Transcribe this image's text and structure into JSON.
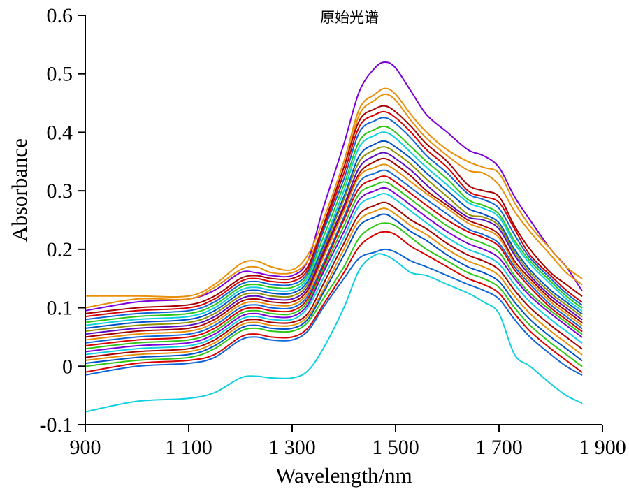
{
  "chart_data": {
    "type": "line",
    "title": "原始光谱",
    "xlabel": "Wavelength/nm",
    "ylabel": "Absorbance",
    "xlim": [
      900,
      1900
    ],
    "ylim": [
      -0.1,
      0.6
    ],
    "x_ticks": [
      900,
      1100,
      1300,
      1500,
      1700,
      1900
    ],
    "x_tick_labels": [
      "900",
      "1 100",
      "1 300",
      "1 500",
      "1 700",
      "1 900"
    ],
    "y_ticks": [
      -0.1,
      0,
      0.1,
      0.2,
      0.3,
      0.4,
      0.5,
      0.6
    ],
    "y_tick_labels": [
      "-0.1",
      "0",
      "0.1",
      "0.2",
      "0.3",
      "0.4",
      "0.5",
      "0.6"
    ],
    "grid": false,
    "legend": "none",
    "x": [
      900,
      1000,
      1100,
      1150,
      1200,
      1230,
      1260,
      1300,
      1330,
      1360,
      1400,
      1430,
      1460,
      1480,
      1500,
      1530,
      1560,
      1600,
      1640,
      1670,
      1700,
      1730,
      1760,
      1800,
      1830,
      1860
    ],
    "palette": [
      "#7a00d8",
      "#e8900a",
      "#a80000",
      "#1066d8",
      "#2ec818",
      "#10d0e0",
      "#d80000",
      "#0050c8",
      "#909000",
      "#5a10c0"
    ],
    "series": [
      {
        "color": "#7a00d8",
        "values": [
          0.095,
          0.11,
          0.115,
          0.13,
          0.16,
          0.16,
          0.155,
          0.155,
          0.18,
          0.27,
          0.38,
          0.47,
          0.51,
          0.52,
          0.51,
          0.47,
          0.43,
          0.4,
          0.37,
          0.36,
          0.34,
          0.29,
          0.25,
          0.2,
          0.17,
          0.13
        ]
      },
      {
        "color": "#e8900a",
        "values": [
          0.12,
          0.12,
          0.12,
          0.14,
          0.175,
          0.18,
          0.17,
          0.165,
          0.19,
          0.25,
          0.35,
          0.44,
          0.465,
          0.475,
          0.465,
          0.43,
          0.4,
          0.37,
          0.35,
          0.34,
          0.33,
          0.28,
          0.24,
          0.2,
          0.17,
          0.15
        ]
      },
      {
        "color": "#e8900a",
        "values": [
          0.1,
          0.115,
          0.115,
          0.135,
          0.165,
          0.17,
          0.16,
          0.16,
          0.18,
          0.24,
          0.34,
          0.43,
          0.455,
          0.465,
          0.455,
          0.42,
          0.39,
          0.36,
          0.335,
          0.33,
          0.31,
          0.265,
          0.23,
          0.19,
          0.16,
          0.14
        ]
      },
      {
        "color": "#a80000",
        "values": [
          0.09,
          0.1,
          0.105,
          0.12,
          0.15,
          0.155,
          0.15,
          0.15,
          0.17,
          0.24,
          0.34,
          0.42,
          0.44,
          0.445,
          0.435,
          0.41,
          0.38,
          0.35,
          0.31,
          0.3,
          0.29,
          0.24,
          0.2,
          0.16,
          0.14,
          0.12
        ]
      },
      {
        "color": "#d80000",
        "values": [
          0.085,
          0.095,
          0.1,
          0.115,
          0.145,
          0.15,
          0.145,
          0.145,
          0.165,
          0.235,
          0.33,
          0.41,
          0.43,
          0.435,
          0.425,
          0.4,
          0.37,
          0.34,
          0.3,
          0.29,
          0.28,
          0.235,
          0.19,
          0.155,
          0.13,
          0.11
        ]
      },
      {
        "color": "#1066d8",
        "values": [
          0.08,
          0.09,
          0.095,
          0.11,
          0.14,
          0.145,
          0.14,
          0.14,
          0.16,
          0.23,
          0.32,
          0.4,
          0.42,
          0.425,
          0.415,
          0.39,
          0.36,
          0.33,
          0.295,
          0.285,
          0.27,
          0.225,
          0.185,
          0.15,
          0.125,
          0.105
        ]
      },
      {
        "color": "#2ec818",
        "values": [
          0.075,
          0.085,
          0.09,
          0.105,
          0.135,
          0.14,
          0.135,
          0.135,
          0.155,
          0.22,
          0.31,
          0.385,
          0.405,
          0.41,
          0.4,
          0.375,
          0.35,
          0.32,
          0.285,
          0.275,
          0.26,
          0.215,
          0.18,
          0.145,
          0.12,
          0.1
        ]
      },
      {
        "color": "#10d0e0",
        "values": [
          0.07,
          0.08,
          0.085,
          0.1,
          0.13,
          0.135,
          0.13,
          0.13,
          0.15,
          0.21,
          0.3,
          0.375,
          0.395,
          0.4,
          0.39,
          0.365,
          0.34,
          0.31,
          0.28,
          0.27,
          0.255,
          0.21,
          0.175,
          0.14,
          0.115,
          0.095
        ]
      },
      {
        "color": "#0050c8",
        "values": [
          0.065,
          0.075,
          0.08,
          0.095,
          0.125,
          0.13,
          0.125,
          0.125,
          0.145,
          0.205,
          0.29,
          0.36,
          0.38,
          0.385,
          0.375,
          0.355,
          0.33,
          0.3,
          0.27,
          0.26,
          0.245,
          0.2,
          0.165,
          0.13,
          0.11,
          0.09
        ]
      },
      {
        "color": "#909000",
        "values": [
          0.06,
          0.07,
          0.075,
          0.09,
          0.12,
          0.125,
          0.12,
          0.12,
          0.14,
          0.2,
          0.285,
          0.35,
          0.37,
          0.375,
          0.365,
          0.345,
          0.32,
          0.29,
          0.26,
          0.255,
          0.24,
          0.195,
          0.16,
          0.125,
          0.105,
          0.085
        ]
      },
      {
        "color": "#5a10c0",
        "values": [
          0.055,
          0.065,
          0.07,
          0.085,
          0.115,
          0.12,
          0.115,
          0.115,
          0.135,
          0.195,
          0.275,
          0.34,
          0.36,
          0.365,
          0.355,
          0.335,
          0.31,
          0.28,
          0.255,
          0.25,
          0.235,
          0.19,
          0.155,
          0.12,
          0.1,
          0.08
        ]
      },
      {
        "color": "#a80000",
        "values": [
          0.05,
          0.06,
          0.065,
          0.08,
          0.11,
          0.115,
          0.11,
          0.11,
          0.13,
          0.19,
          0.27,
          0.33,
          0.35,
          0.355,
          0.345,
          0.325,
          0.3,
          0.275,
          0.25,
          0.24,
          0.225,
          0.18,
          0.15,
          0.115,
          0.095,
          0.075
        ]
      },
      {
        "color": "#e8900a",
        "values": [
          0.045,
          0.055,
          0.06,
          0.075,
          0.105,
          0.11,
          0.105,
          0.105,
          0.125,
          0.185,
          0.265,
          0.325,
          0.34,
          0.345,
          0.335,
          0.315,
          0.295,
          0.27,
          0.245,
          0.235,
          0.22,
          0.175,
          0.145,
          0.11,
          0.09,
          0.07
        ]
      },
      {
        "color": "#1066d8",
        "values": [
          0.04,
          0.05,
          0.055,
          0.07,
          0.1,
          0.105,
          0.1,
          0.1,
          0.12,
          0.175,
          0.255,
          0.315,
          0.33,
          0.335,
          0.325,
          0.305,
          0.285,
          0.26,
          0.235,
          0.225,
          0.21,
          0.17,
          0.14,
          0.105,
          0.085,
          0.065
        ]
      },
      {
        "color": "#d80000",
        "values": [
          0.035,
          0.045,
          0.05,
          0.065,
          0.095,
          0.1,
          0.095,
          0.095,
          0.115,
          0.17,
          0.25,
          0.305,
          0.32,
          0.325,
          0.315,
          0.295,
          0.275,
          0.25,
          0.23,
          0.22,
          0.205,
          0.165,
          0.135,
          0.1,
          0.08,
          0.06
        ]
      },
      {
        "color": "#2ec818",
        "values": [
          0.03,
          0.04,
          0.045,
          0.06,
          0.09,
          0.095,
          0.09,
          0.09,
          0.11,
          0.165,
          0.24,
          0.295,
          0.31,
          0.315,
          0.305,
          0.285,
          0.265,
          0.24,
          0.22,
          0.21,
          0.195,
          0.155,
          0.125,
          0.095,
          0.075,
          0.055
        ]
      },
      {
        "color": "#7a00d8",
        "values": [
          0.025,
          0.035,
          0.04,
          0.055,
          0.085,
          0.09,
          0.085,
          0.085,
          0.105,
          0.16,
          0.23,
          0.285,
          0.3,
          0.305,
          0.295,
          0.275,
          0.255,
          0.23,
          0.21,
          0.2,
          0.185,
          0.15,
          0.12,
          0.09,
          0.07,
          0.05
        ]
      },
      {
        "color": "#10d0e0",
        "values": [
          0.02,
          0.03,
          0.035,
          0.05,
          0.08,
          0.085,
          0.08,
          0.08,
          0.1,
          0.15,
          0.22,
          0.275,
          0.29,
          0.295,
          0.285,
          0.265,
          0.245,
          0.22,
          0.2,
          0.19,
          0.175,
          0.14,
          0.11,
          0.08,
          0.06,
          0.04
        ]
      },
      {
        "color": "#a80000",
        "values": [
          0.015,
          0.025,
          0.03,
          0.045,
          0.075,
          0.08,
          0.075,
          0.075,
          0.09,
          0.14,
          0.21,
          0.26,
          0.275,
          0.28,
          0.27,
          0.25,
          0.235,
          0.21,
          0.19,
          0.18,
          0.165,
          0.13,
          0.1,
          0.07,
          0.05,
          0.03
        ]
      },
      {
        "color": "#e8900a",
        "values": [
          0.01,
          0.02,
          0.025,
          0.04,
          0.07,
          0.075,
          0.07,
          0.07,
          0.085,
          0.13,
          0.2,
          0.25,
          0.265,
          0.27,
          0.26,
          0.24,
          0.225,
          0.2,
          0.18,
          0.17,
          0.155,
          0.12,
          0.09,
          0.06,
          0.04,
          0.02
        ]
      },
      {
        "color": "#0050c8",
        "values": [
          0.005,
          0.015,
          0.02,
          0.035,
          0.065,
          0.07,
          0.065,
          0.065,
          0.08,
          0.125,
          0.19,
          0.24,
          0.255,
          0.26,
          0.25,
          0.23,
          0.215,
          0.19,
          0.17,
          0.16,
          0.145,
          0.11,
          0.08,
          0.05,
          0.03,
          0.01
        ]
      },
      {
        "color": "#2ec818",
        "values": [
          0.0,
          0.01,
          0.015,
          0.03,
          0.06,
          0.065,
          0.06,
          0.06,
          0.075,
          0.115,
          0.17,
          0.22,
          0.24,
          0.245,
          0.24,
          0.22,
          0.2,
          0.18,
          0.16,
          0.15,
          0.135,
          0.1,
          0.07,
          0.04,
          0.02,
          0.0
        ]
      },
      {
        "color": "#d80000",
        "values": [
          -0.01,
          0.005,
          0.01,
          0.02,
          0.05,
          0.055,
          0.05,
          0.05,
          0.065,
          0.105,
          0.16,
          0.205,
          0.225,
          0.23,
          0.225,
          0.205,
          0.19,
          0.17,
          0.15,
          0.14,
          0.125,
          0.09,
          0.06,
          0.03,
          0.01,
          -0.01
        ]
      },
      {
        "color": "#1066d8",
        "values": [
          -0.015,
          0.0,
          0.005,
          0.015,
          0.045,
          0.05,
          0.045,
          0.045,
          0.06,
          0.1,
          0.15,
          0.185,
          0.195,
          0.2,
          0.195,
          0.18,
          0.17,
          0.155,
          0.14,
          0.13,
          0.115,
          0.08,
          0.05,
          0.02,
          0.0,
          -0.015
        ]
      },
      {
        "color": "#10d0e0",
        "values": [
          -0.078,
          -0.06,
          -0.055,
          -0.045,
          -0.02,
          -0.017,
          -0.02,
          -0.02,
          -0.008,
          0.03,
          0.1,
          0.165,
          0.19,
          0.19,
          0.18,
          0.16,
          0.155,
          0.14,
          0.125,
          0.11,
          0.09,
          0.02,
          0.0,
          -0.03,
          -0.05,
          -0.063
        ]
      }
    ]
  }
}
